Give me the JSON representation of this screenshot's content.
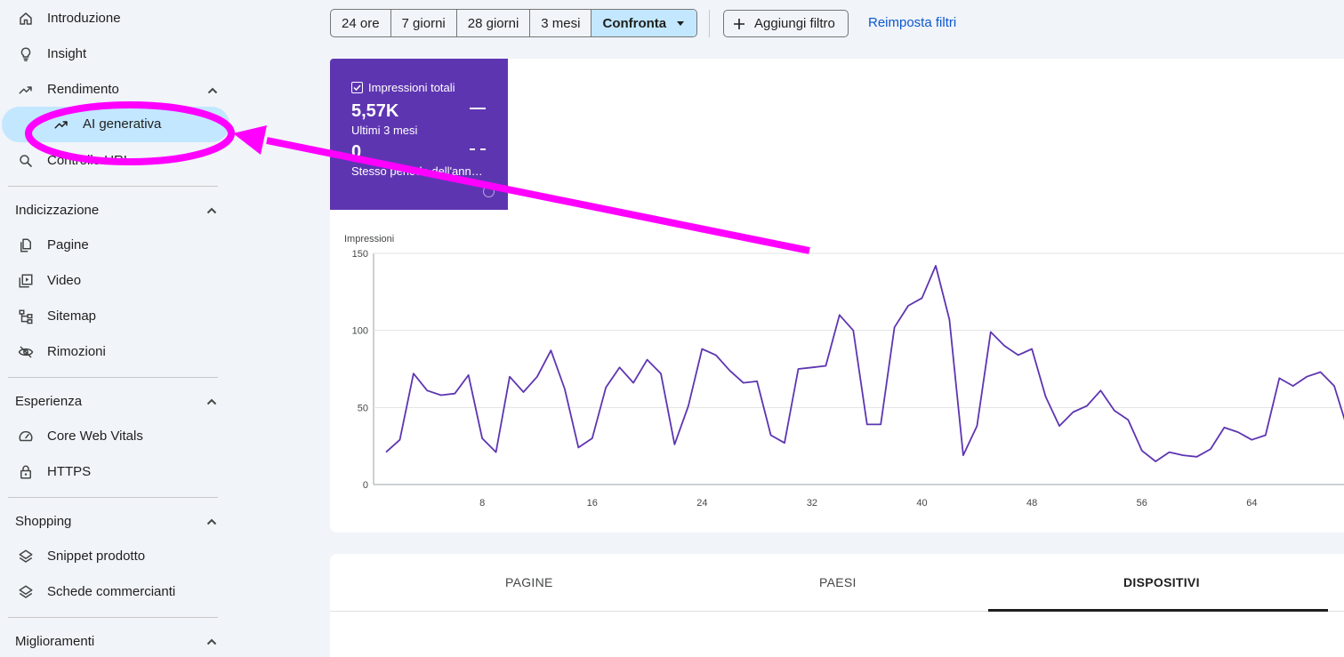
{
  "sidebar": {
    "items": [
      {
        "label": "Introduzione",
        "icon": "home-icon"
      },
      {
        "label": "Insight",
        "icon": "lightbulb-icon"
      },
      {
        "label": "Rendimento",
        "icon": "trending-up-icon"
      },
      {
        "label": "AI generativa",
        "icon": "trending-up-icon"
      },
      {
        "label": "Controllo URL",
        "icon": "search-icon"
      }
    ],
    "sections": [
      {
        "title": "Indicizzazione",
        "items": [
          {
            "label": "Pagine",
            "icon": "pages-icon"
          },
          {
            "label": "Video",
            "icon": "video-icon"
          },
          {
            "label": "Sitemap",
            "icon": "sitemap-icon"
          },
          {
            "label": "Rimozioni",
            "icon": "eye-off-icon"
          }
        ]
      },
      {
        "title": "Esperienza",
        "items": [
          {
            "label": "Core Web Vitals",
            "icon": "speedometer-icon"
          },
          {
            "label": "HTTPS",
            "icon": "lock-icon"
          }
        ]
      },
      {
        "title": "Shopping",
        "items": [
          {
            "label": "Snippet prodotto",
            "icon": "layers-icon"
          },
          {
            "label": "Schede commercianti",
            "icon": "layers-icon"
          }
        ]
      },
      {
        "title": "Miglioramenti",
        "items": []
      }
    ]
  },
  "toolbar": {
    "date_ranges": [
      "24 ore",
      "7 giorni",
      "28 giorni",
      "3 mesi"
    ],
    "compare_label": "Confronta",
    "add_filter_label": "Aggiungi filtro",
    "reset_label": "Reimposta filtri"
  },
  "metric": {
    "title": "Impressioni totali",
    "value": "5,57K",
    "period": "Ultimi 3 mesi",
    "compare_value": "0",
    "compare_period": "Stesso periodo dell'anno...",
    "color": "#5e35b1"
  },
  "tabs": [
    "PAGINE",
    "PAESI",
    "DISPOSITIVI"
  ],
  "active_tab": "DISPOSITIVI",
  "chart_data": {
    "type": "line",
    "ylabel": "Impressioni",
    "ylim": [
      0,
      150
    ],
    "yticks": [
      0,
      50,
      100,
      150
    ],
    "xticks": [
      8,
      16,
      24,
      32,
      40,
      48,
      56,
      64
    ],
    "grid": true,
    "color": "#5e35b1",
    "series": [
      {
        "values": [
          21,
          29,
          72,
          61,
          58,
          59,
          71,
          30,
          21,
          70,
          60,
          70,
          87,
          62,
          24,
          30,
          63,
          76,
          66,
          81,
          72,
          26,
          51,
          88,
          84,
          74,
          66,
          67,
          32,
          27,
          75,
          76,
          77,
          110,
          100,
          39,
          39,
          102,
          116,
          121,
          142,
          107,
          19,
          38,
          99,
          90,
          84,
          88,
          57,
          38,
          47,
          51,
          61,
          48,
          42,
          22,
          15,
          21,
          19,
          18,
          23,
          37,
          34,
          29,
          32,
          69,
          64,
          70,
          73,
          64,
          35
        ]
      }
    ]
  }
}
